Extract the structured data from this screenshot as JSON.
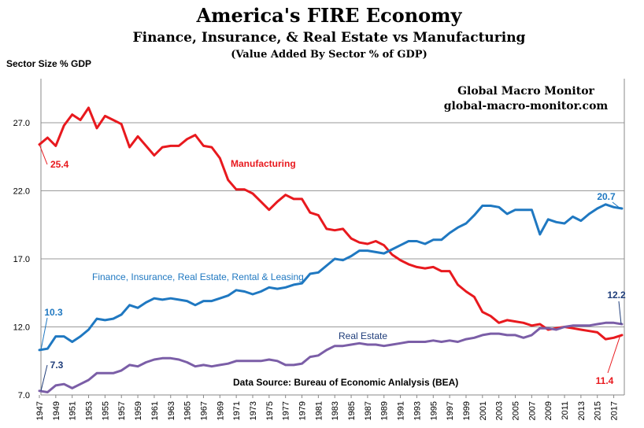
{
  "chart_data": {
    "type": "line",
    "title": "America's FIRE Economy",
    "subtitle": "Finance, Insurance, & Real Estate vs Manufacturing",
    "subtitle2": "(Value Added By Sector % of GDP)",
    "ylabel": "Sector Size % GDP",
    "brand_name": "Global Macro Monitor",
    "brand_url": "global-macro-monitor.com",
    "source": "Data Source:  Bureau of Economic Anlalysis (BEA)",
    "ylim": [
      7.0,
      27.0
    ],
    "yticks": [
      "7.0",
      "12.0",
      "17.0",
      "22.0",
      "27.0"
    ],
    "xlim": [
      1947,
      2018
    ],
    "xticks": [
      "1947",
      "1949",
      "1951",
      "1953",
      "1955",
      "1957",
      "1959",
      "1961",
      "1963",
      "1965",
      "1967",
      "1969",
      "1971",
      "1973",
      "1975",
      "1977",
      "1979",
      "1981",
      "1983",
      "1985",
      "1987",
      "1989",
      "1991",
      "1993",
      "1995",
      "1997",
      "1999",
      "2001",
      "2003",
      "2005",
      "2007",
      "2009",
      "2011",
      "2013",
      "2015",
      "2017"
    ],
    "grid": true,
    "x": [
      1947,
      1948,
      1949,
      1950,
      1951,
      1952,
      1953,
      1954,
      1955,
      1956,
      1957,
      1958,
      1959,
      1960,
      1961,
      1962,
      1963,
      1964,
      1965,
      1966,
      1967,
      1968,
      1969,
      1970,
      1971,
      1972,
      1973,
      1974,
      1975,
      1976,
      1977,
      1978,
      1979,
      1980,
      1981,
      1982,
      1983,
      1984,
      1985,
      1986,
      1987,
      1988,
      1989,
      1990,
      1991,
      1992,
      1993,
      1994,
      1995,
      1996,
      1997,
      1998,
      1999,
      2000,
      2001,
      2002,
      2003,
      2004,
      2005,
      2006,
      2007,
      2008,
      2009,
      2010,
      2011,
      2012,
      2013,
      2014,
      2015,
      2016,
      2017,
      2018
    ],
    "series": [
      {
        "name": "Manufacturing",
        "color": "#e8191e",
        "values": [
          25.4,
          25.9,
          25.3,
          26.8,
          27.6,
          27.2,
          28.1,
          26.6,
          27.5,
          27.2,
          26.9,
          25.2,
          26.0,
          25.3,
          24.6,
          25.2,
          25.3,
          25.3,
          25.8,
          26.1,
          25.3,
          25.2,
          24.4,
          22.8,
          22.1,
          22.1,
          21.8,
          21.2,
          20.6,
          21.2,
          21.7,
          21.4,
          21.4,
          20.4,
          20.2,
          19.2,
          19.1,
          19.2,
          18.5,
          18.2,
          18.1,
          18.3,
          18.0,
          17.3,
          16.9,
          16.6,
          16.4,
          16.3,
          16.4,
          16.1,
          16.1,
          15.1,
          14.6,
          14.2,
          13.1,
          12.8,
          12.3,
          12.5,
          12.4,
          12.3,
          12.1,
          12.2,
          11.8,
          11.9,
          12.0,
          11.9,
          11.8,
          11.7,
          11.6,
          11.1,
          11.2,
          11.4
        ],
        "label_start": "25.4",
        "label_end": "11.4"
      },
      {
        "name": "Finance, Insurance, Real Estate, Rental  & Leasing",
        "color": "#1f78c1",
        "values": [
          10.3,
          10.4,
          11.3,
          11.3,
          10.9,
          11.3,
          11.8,
          12.6,
          12.5,
          12.6,
          12.9,
          13.6,
          13.4,
          13.8,
          14.1,
          14.0,
          14.1,
          14.0,
          13.9,
          13.6,
          13.9,
          13.9,
          14.1,
          14.3,
          14.7,
          14.6,
          14.4,
          14.6,
          14.9,
          14.8,
          14.9,
          15.1,
          15.2,
          15.9,
          16.0,
          16.5,
          17.0,
          16.9,
          17.2,
          17.6,
          17.6,
          17.5,
          17.4,
          17.7,
          18.0,
          18.3,
          18.3,
          18.1,
          18.4,
          18.4,
          18.9,
          19.3,
          19.6,
          20.2,
          20.9,
          20.9,
          20.8,
          20.3,
          20.6,
          20.6,
          20.6,
          18.8,
          19.9,
          19.7,
          19.6,
          20.1,
          19.8,
          20.3,
          20.7,
          21.0,
          20.8,
          20.7
        ],
        "label_start": "10.3",
        "label_end": "20.7"
      },
      {
        "name": "Real Estate",
        "color": "#7b5ea7",
        "values": [
          7.3,
          7.2,
          7.7,
          7.8,
          7.5,
          7.8,
          8.1,
          8.6,
          8.6,
          8.6,
          8.8,
          9.2,
          9.1,
          9.4,
          9.6,
          9.7,
          9.7,
          9.6,
          9.4,
          9.1,
          9.2,
          9.1,
          9.2,
          9.3,
          9.5,
          9.5,
          9.5,
          9.5,
          9.6,
          9.5,
          9.2,
          9.2,
          9.3,
          9.8,
          9.9,
          10.3,
          10.6,
          10.6,
          10.7,
          10.8,
          10.7,
          10.7,
          10.6,
          10.7,
          10.8,
          10.9,
          10.9,
          10.9,
          11.0,
          10.9,
          11.0,
          10.9,
          11.1,
          11.2,
          11.4,
          11.5,
          11.5,
          11.4,
          11.4,
          11.2,
          11.4,
          11.9,
          11.9,
          11.8,
          12.0,
          12.1,
          12.1,
          12.1,
          12.2,
          12.3,
          12.3,
          12.2
        ],
        "label_start": "7.3",
        "label_end": "12.2"
      }
    ]
  }
}
